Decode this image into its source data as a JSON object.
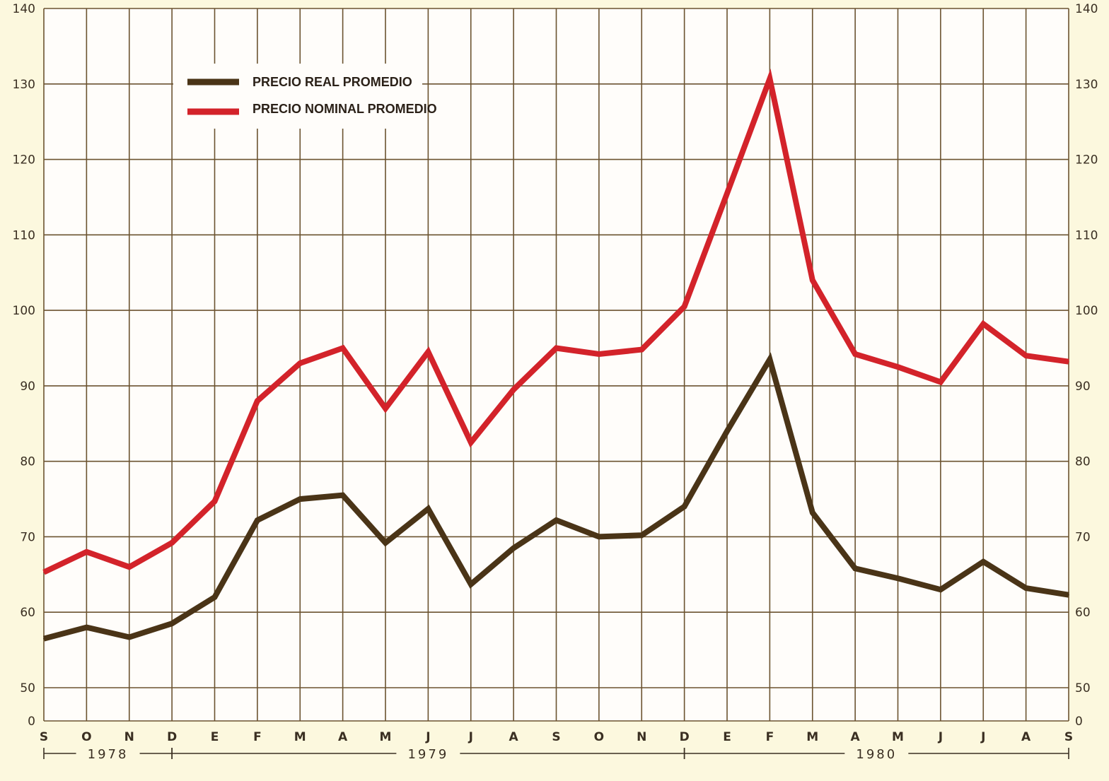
{
  "chart_data": {
    "type": "line",
    "categories": [
      "S",
      "O",
      "N",
      "D",
      "E",
      "F",
      "M",
      "A",
      "M",
      "J",
      "J",
      "A",
      "S",
      "O",
      "N",
      "D",
      "E",
      "F",
      "M",
      "A",
      "M",
      "J",
      "J",
      "A",
      "S"
    ],
    "years": [
      {
        "label": "1978",
        "start": 0,
        "end": 3
      },
      {
        "label": "1979",
        "start": 3,
        "end": 15
      },
      {
        "label": "1980",
        "start": 15,
        "end": 24
      }
    ],
    "series": [
      {
        "name": "PRECIO REAL PROMEDIO",
        "color": "#4a3417",
        "values": [
          56.5,
          58.0,
          56.7,
          58.5,
          62.0,
          72.2,
          75.0,
          75.5,
          69.2,
          73.7,
          63.7,
          68.5,
          72.2,
          70.0,
          70.2,
          74.0,
          84.0,
          93.5,
          73.2,
          65.8,
          64.5,
          63.0,
          66.7,
          63.2,
          62.3
        ]
      },
      {
        "name": "PRECIO NOMINAL PROMEDIO",
        "color": "#d3232a",
        "values": [
          65.3,
          68.0,
          66.0,
          69.2,
          74.7,
          88.0,
          93.0,
          95.0,
          87.0,
          94.5,
          82.5,
          89.5,
          95.0,
          94.2,
          94.8,
          100.5,
          115.5,
          130.7,
          104.0,
          94.2,
          92.5,
          90.5,
          98.2,
          94.0,
          93.2
        ]
      }
    ],
    "y_ticks": [
      0,
      50,
      60,
      70,
      80,
      90,
      100,
      110,
      120,
      130,
      140
    ],
    "y_tick_labels_left": [
      "0",
      "50",
      "60",
      "70",
      "80",
      "90",
      "100",
      "110",
      "120",
      "130",
      "140"
    ],
    "y_tick_labels_right": [
      "0",
      "50",
      "60",
      "70",
      "80",
      "90",
      "100",
      "110",
      "120",
      "130",
      "140"
    ],
    "ylim": [
      50,
      140
    ],
    "y_axis_break": "0 below 50",
    "grid": true,
    "legend_position": "top-left",
    "title": "",
    "xlabel": "",
    "ylabel": ""
  }
}
